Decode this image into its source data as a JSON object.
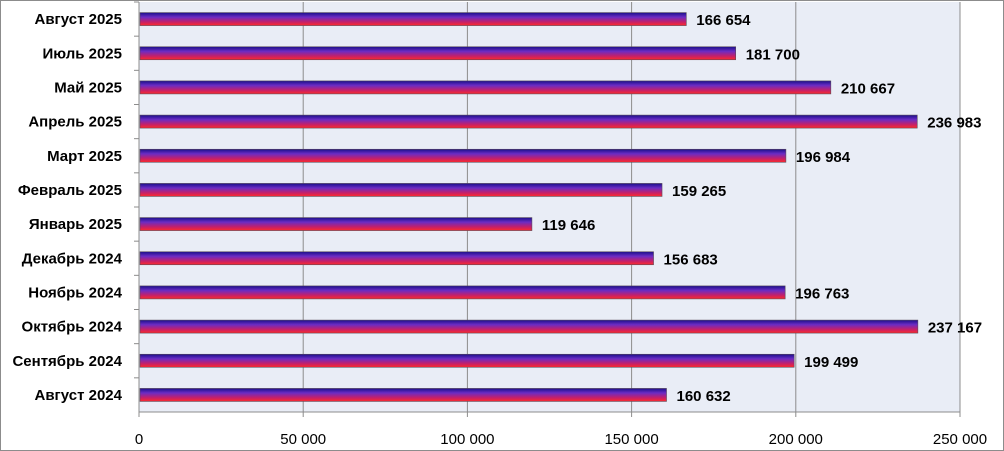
{
  "chart_data": {
    "type": "bar",
    "orientation": "horizontal",
    "categories": [
      "Август 2025",
      "Июль 2025",
      "Май 2025",
      "Апрель 2025",
      "Март 2025",
      "Февраль 2025",
      "Январь 2025",
      "Декабрь 2024",
      "Ноябрь 2024",
      "Октябрь 2024",
      "Сентябрь 2024",
      "Август 2024"
    ],
    "values": [
      166654,
      181700,
      210667,
      236983,
      196984,
      159265,
      119646,
      156683,
      196763,
      237167,
      199499,
      160632
    ],
    "value_labels": [
      "166 654",
      "181 700",
      "210 667",
      "236 983",
      "196 984",
      "159 265",
      "119 646",
      "156 683",
      "196 763",
      "237 167",
      "199 499",
      "160 632"
    ],
    "x_ticks": [
      0,
      50000,
      100000,
      150000,
      200000,
      250000
    ],
    "x_tick_labels": [
      "0",
      "50 000",
      "100 000",
      "150 000",
      "200 000",
      "250 000"
    ],
    "xlim": [
      0,
      250000
    ],
    "title": "",
    "xlabel": "",
    "ylabel": "",
    "grid": "vertical",
    "legend": "none",
    "colors": {
      "plot_background": "#e9edf6",
      "gridline": "#8c8c8c",
      "bar_gradient": [
        "#1a0f8a",
        "#6b2cc4",
        "#c0206e",
        "#ff2a2a"
      ]
    }
  }
}
